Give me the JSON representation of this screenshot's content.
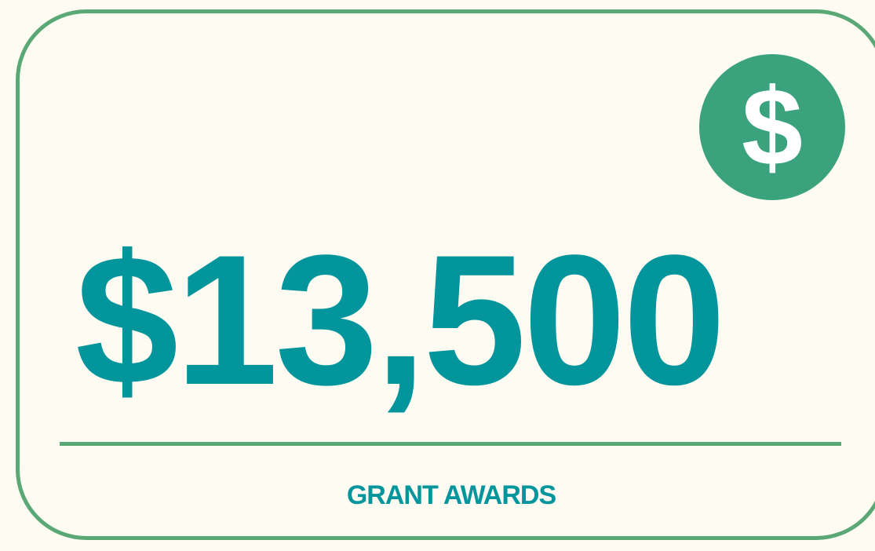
{
  "card": {
    "icon": "$",
    "amount": "$13,500",
    "label": "GRANT AWARDS"
  }
}
